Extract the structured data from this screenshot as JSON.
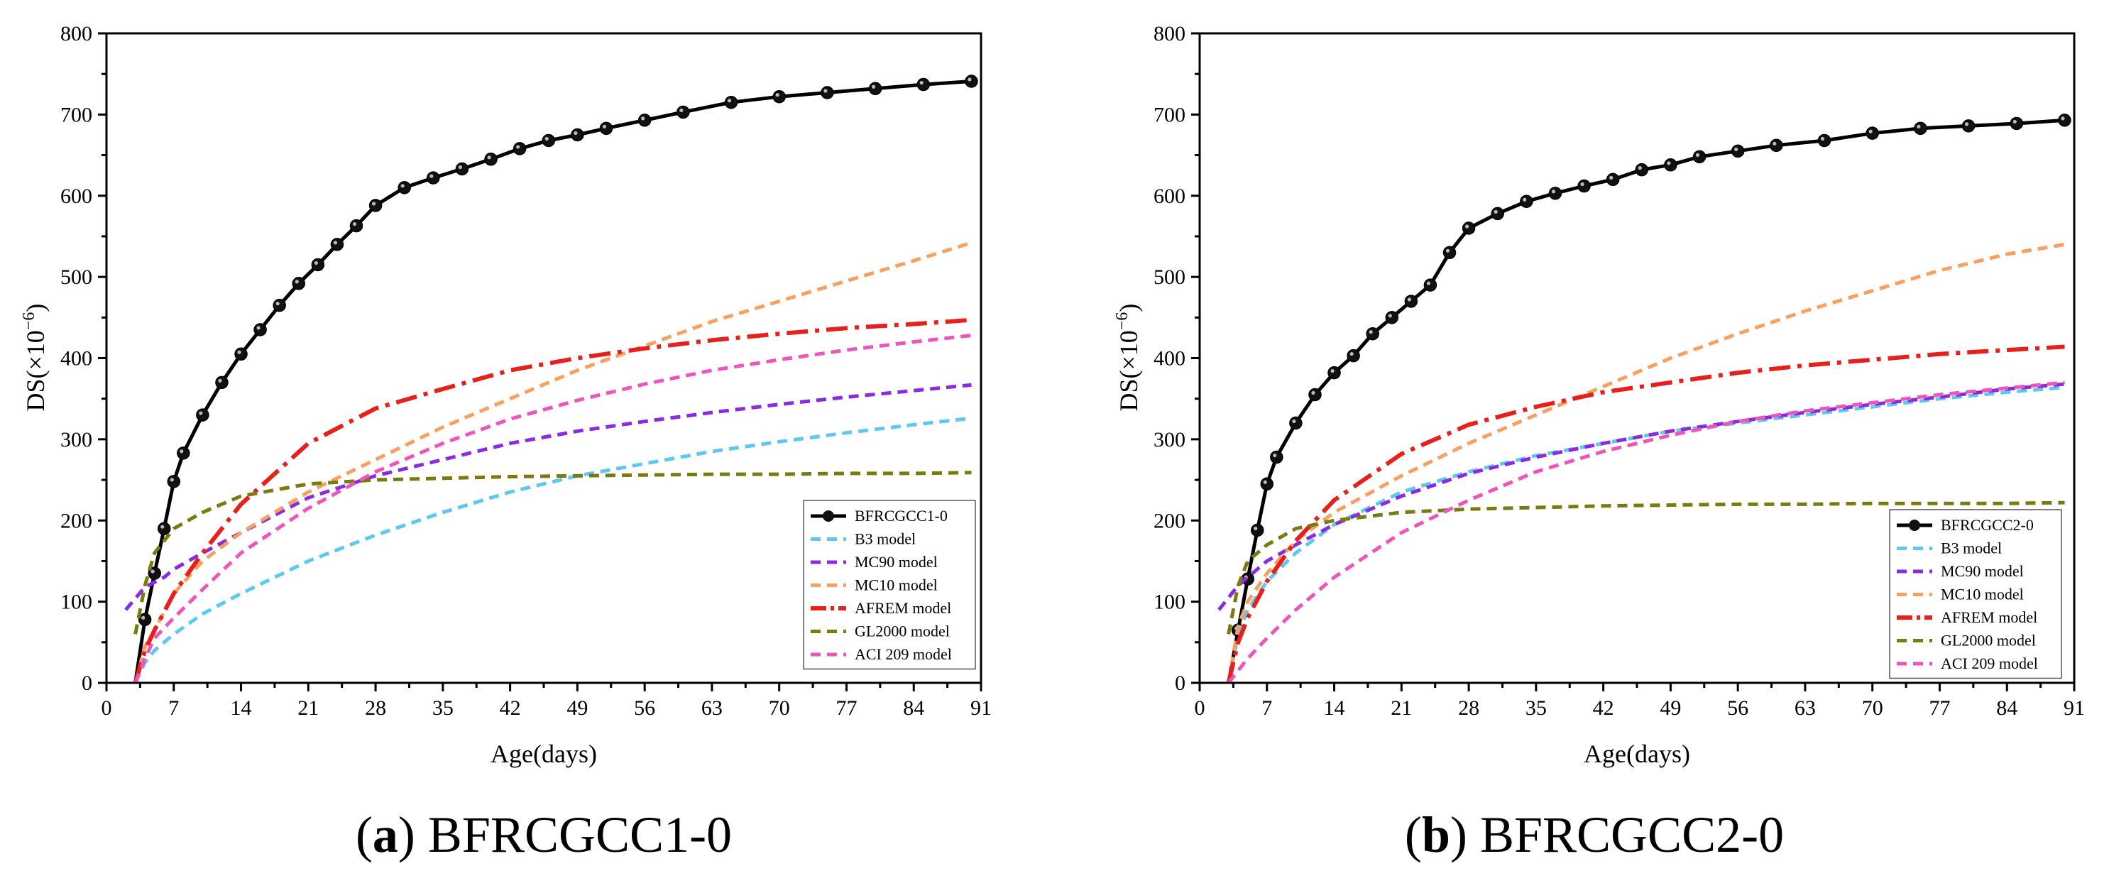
{
  "chart_data": [
    {
      "type": "line",
      "panel_letter": "a",
      "caption": "BFRCGCC1-0",
      "xlabel": "Age(days)",
      "ylabel": "DS(×10",
      "ylabel_exp": "−6",
      "ylabel_close": ")",
      "xlim": [
        0,
        91
      ],
      "ylim": [
        0,
        800
      ],
      "xticks": [
        0,
        7,
        14,
        21,
        28,
        35,
        42,
        49,
        56,
        63,
        70,
        77,
        84,
        91
      ],
      "yticks": [
        0,
        100,
        200,
        300,
        400,
        500,
        600,
        700,
        800
      ],
      "legend_position": "bottom-right",
      "series": [
        {
          "name": "BFRCGCC1-0",
          "style": "marker-line",
          "color": "#000000",
          "x": [
            3,
            4,
            5,
            6,
            7,
            8,
            10,
            12,
            14,
            16,
            18,
            20,
            22,
            24,
            26,
            28,
            31,
            34,
            37,
            40,
            43,
            46,
            49,
            52,
            56,
            60,
            65,
            70,
            75,
            80,
            85,
            90
          ],
          "y": [
            0,
            78,
            135,
            190,
            248,
            283,
            330,
            370,
            405,
            435,
            465,
            492,
            515,
            540,
            563,
            588,
            610,
            622,
            633,
            645,
            658,
            668,
            675,
            683,
            693,
            703,
            715,
            722,
            727,
            732,
            737,
            741
          ]
        },
        {
          "name": "B3 model",
          "style": "dash",
          "color": "#5fc8f0",
          "x": [
            3,
            4,
            5,
            7,
            10,
            14,
            21,
            28,
            35,
            42,
            49,
            56,
            63,
            70,
            77,
            84,
            90
          ],
          "y": [
            0,
            25,
            40,
            60,
            85,
            110,
            150,
            182,
            210,
            235,
            255,
            270,
            285,
            297,
            308,
            318,
            326
          ]
        },
        {
          "name": "MC90 model",
          "style": "dash",
          "color": "#8a2be2",
          "x": [
            2,
            4,
            6,
            7,
            10,
            14,
            21,
            28,
            35,
            42,
            49,
            56,
            63,
            70,
            77,
            84,
            90
          ],
          "y": [
            90,
            118,
            130,
            140,
            160,
            185,
            228,
            255,
            275,
            295,
            310,
            322,
            333,
            343,
            352,
            360,
            367
          ]
        },
        {
          "name": "MC10 model",
          "style": "dash",
          "color": "#f8a060",
          "x": [
            3,
            4,
            5,
            7,
            10,
            14,
            21,
            28,
            35,
            42,
            49,
            56,
            63,
            70,
            77,
            84,
            90
          ],
          "y": [
            0,
            45,
            65,
            110,
            150,
            185,
            235,
            275,
            315,
            350,
            385,
            415,
            445,
            470,
            495,
            520,
            542
          ]
        },
        {
          "name": "AFREM model",
          "style": "dashdot",
          "color": "#e8201c",
          "x": [
            3,
            4,
            5,
            7,
            10,
            14,
            21,
            28,
            35,
            42,
            49,
            56,
            63,
            70,
            77,
            84,
            90
          ],
          "y": [
            0,
            40,
            65,
            110,
            160,
            220,
            295,
            338,
            362,
            385,
            400,
            412,
            422,
            430,
            437,
            442,
            447
          ]
        },
        {
          "name": "GL2000 model",
          "style": "dash",
          "color": "#7a7a10",
          "x": [
            3,
            4,
            5,
            7,
            10,
            14,
            21,
            28,
            35,
            42,
            49,
            56,
            63,
            70,
            77,
            84,
            90
          ],
          "y": [
            60,
            120,
            160,
            190,
            210,
            230,
            245,
            250,
            252,
            254,
            255,
            256,
            257,
            257,
            258,
            258,
            259
          ]
        },
        {
          "name": "ACI 209 model",
          "style": "dash",
          "color": "#ee55bb",
          "x": [
            3,
            4,
            5,
            7,
            10,
            14,
            21,
            28,
            35,
            42,
            49,
            56,
            63,
            70,
            77,
            84,
            90
          ],
          "y": [
            0,
            30,
            55,
            80,
            115,
            160,
            215,
            260,
            295,
            325,
            348,
            368,
            385,
            398,
            410,
            420,
            428
          ]
        }
      ]
    },
    {
      "type": "line",
      "panel_letter": "b",
      "caption": "BFRCGCC2-0",
      "xlabel": "Age(days)",
      "ylabel": "DS(×10",
      "ylabel_exp": "−6",
      "ylabel_close": ")",
      "xlim": [
        0,
        91
      ],
      "ylim": [
        0,
        800
      ],
      "xticks": [
        0,
        7,
        14,
        21,
        28,
        35,
        42,
        49,
        56,
        63,
        70,
        77,
        84,
        91
      ],
      "yticks": [
        0,
        100,
        200,
        300,
        400,
        500,
        600,
        700,
        800
      ],
      "legend_position": "bottom-right",
      "series": [
        {
          "name": "BFRCGCC2-0",
          "style": "marker-line",
          "color": "#000000",
          "x": [
            3,
            4,
            5,
            6,
            7,
            8,
            10,
            12,
            14,
            16,
            18,
            20,
            22,
            24,
            26,
            28,
            31,
            34,
            37,
            40,
            43,
            46,
            49,
            52,
            56,
            60,
            65,
            70,
            75,
            80,
            85,
            90
          ],
          "y": [
            0,
            65,
            128,
            188,
            245,
            278,
            320,
            355,
            382,
            403,
            430,
            450,
            470,
            490,
            530,
            560,
            578,
            593,
            603,
            612,
            620,
            632,
            638,
            648,
            655,
            662,
            668,
            677,
            683,
            686,
            689,
            693
          ]
        },
        {
          "name": "B3 model",
          "style": "dash",
          "color": "#5fc8f0",
          "x": [
            3,
            4,
            5,
            7,
            10,
            14,
            21,
            28,
            35,
            42,
            49,
            56,
            63,
            70,
            77,
            84,
            90
          ],
          "y": [
            0,
            60,
            90,
            125,
            160,
            195,
            235,
            260,
            280,
            295,
            310,
            320,
            330,
            340,
            350,
            358,
            364
          ]
        },
        {
          "name": "MC90 model",
          "style": "dash",
          "color": "#8a2be2",
          "x": [
            2,
            4,
            6,
            7,
            10,
            14,
            21,
            28,
            35,
            42,
            49,
            56,
            63,
            70,
            77,
            84,
            90
          ],
          "y": [
            90,
            120,
            140,
            150,
            170,
            195,
            230,
            258,
            278,
            295,
            310,
            322,
            333,
            343,
            352,
            362,
            368
          ]
        },
        {
          "name": "MC10 model",
          "style": "dash",
          "color": "#f8a060",
          "x": [
            3,
            4,
            5,
            7,
            10,
            14,
            21,
            28,
            35,
            42,
            49,
            56,
            63,
            70,
            77,
            84,
            90
          ],
          "y": [
            0,
            70,
            100,
            135,
            175,
            210,
            255,
            295,
            330,
            365,
            400,
            430,
            458,
            483,
            508,
            528,
            540
          ]
        },
        {
          "name": "AFREM model",
          "style": "dashdot",
          "color": "#e8201c",
          "x": [
            3,
            4,
            5,
            7,
            10,
            14,
            21,
            28,
            35,
            42,
            49,
            56,
            63,
            70,
            77,
            84,
            90
          ],
          "y": [
            0,
            50,
            80,
            125,
            175,
            225,
            282,
            318,
            340,
            358,
            370,
            382,
            391,
            398,
            405,
            410,
            414
          ]
        },
        {
          "name": "GL2000 model",
          "style": "dash",
          "color": "#7a7a10",
          "x": [
            3,
            4,
            5,
            7,
            10,
            14,
            21,
            28,
            35,
            42,
            49,
            56,
            63,
            70,
            77,
            84,
            90
          ],
          "y": [
            60,
            120,
            150,
            170,
            190,
            200,
            210,
            214,
            216,
            218,
            219,
            220,
            220,
            221,
            221,
            221,
            222
          ]
        },
        {
          "name": "ACI 209 model",
          "style": "dash",
          "color": "#ee55bb",
          "x": [
            3,
            4,
            5,
            7,
            10,
            14,
            21,
            28,
            35,
            42,
            49,
            56,
            63,
            70,
            77,
            84,
            90
          ],
          "y": [
            0,
            15,
            30,
            55,
            90,
            130,
            185,
            225,
            260,
            285,
            305,
            322,
            335,
            345,
            355,
            363,
            370
          ]
        }
      ]
    }
  ]
}
